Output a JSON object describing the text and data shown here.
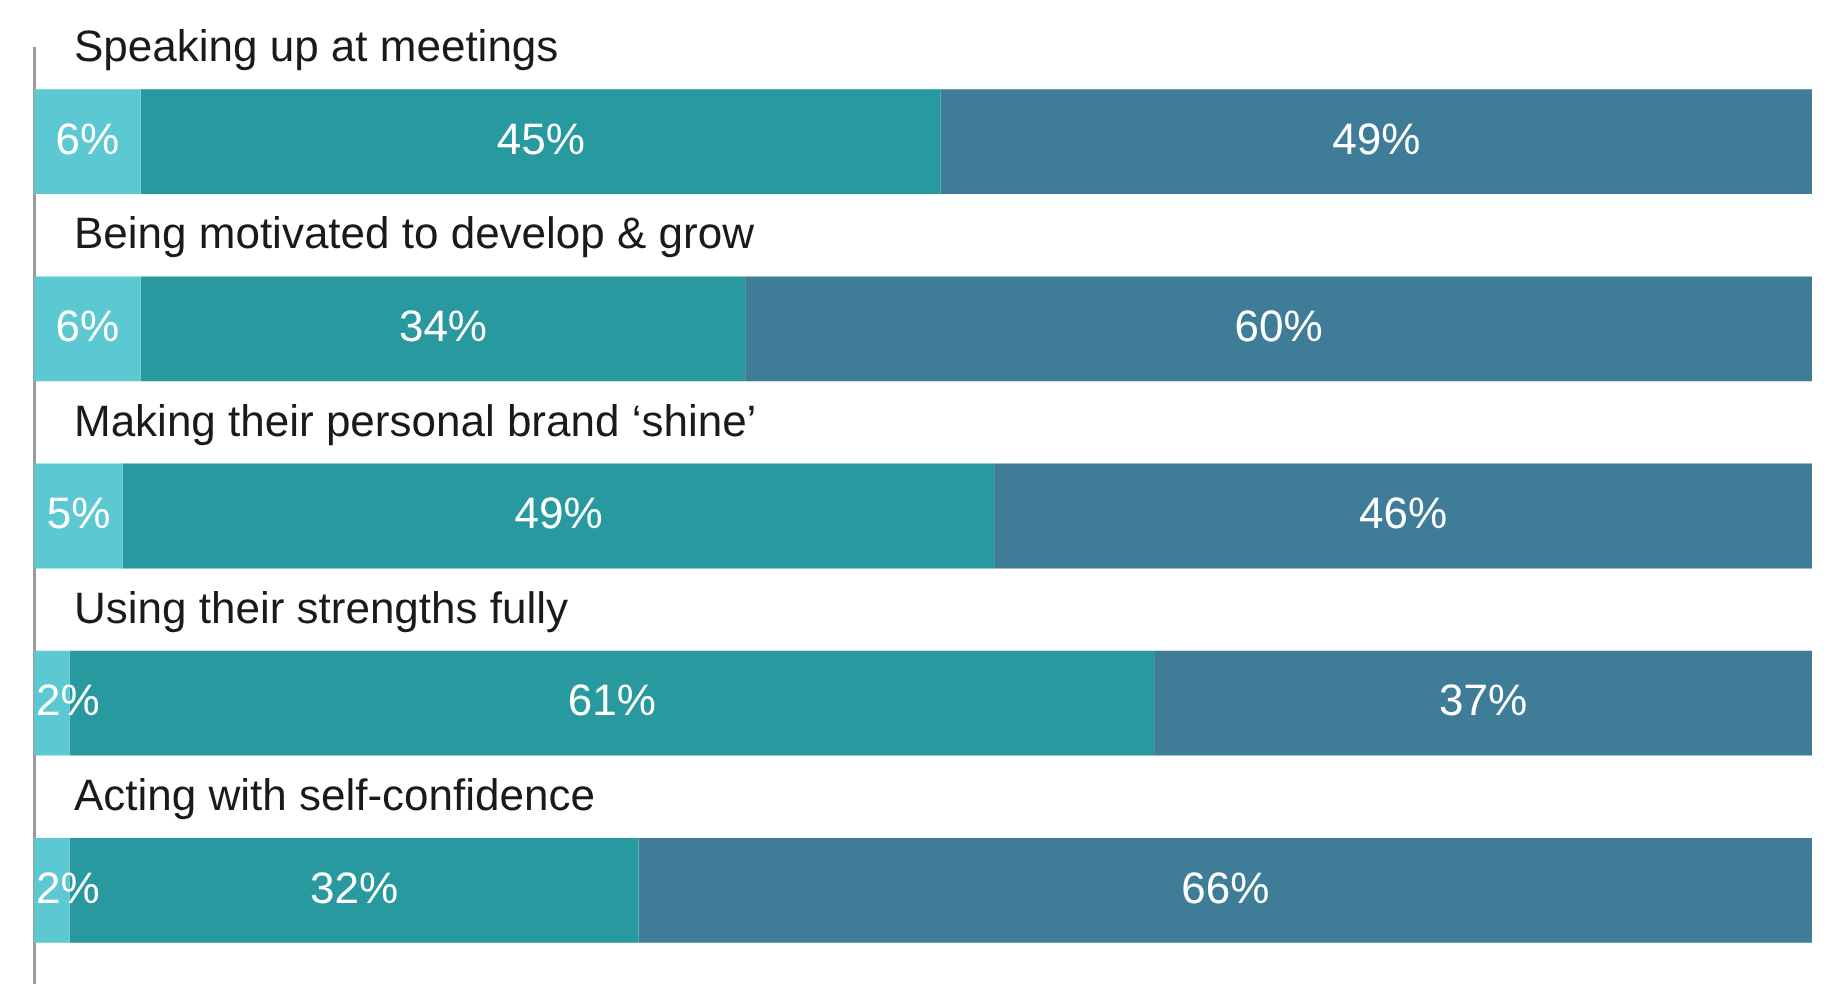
{
  "chart_data": {
    "type": "bar",
    "orientation": "horizontal",
    "stacked": true,
    "tick_labels": false,
    "legend": false,
    "xlim": [
      0,
      100
    ],
    "categories": [
      "Speaking up at meetings",
      "Being motivated to develop & grow",
      "Making their personal brand ‘shine’",
      "Using their strengths fully",
      "Acting with self-confidence"
    ],
    "series": [
      {
        "color": "#5bc8d2",
        "values": [
          6,
          6,
          5,
          2,
          2
        ],
        "value_labels": [
          "6%",
          "6%",
          "5%",
          "2%",
          "2%"
        ]
      },
      {
        "color": "#28999e",
        "values": [
          45,
          34,
          49,
          61,
          32
        ],
        "value_labels": [
          "45%",
          "34%",
          "49%",
          "61%",
          "32%"
        ]
      },
      {
        "color": "#3f7c97",
        "values": [
          49,
          60,
          46,
          37,
          66
        ],
        "value_labels": [
          "49%",
          "60%",
          "46%",
          "37%",
          "66%"
        ]
      }
    ]
  }
}
